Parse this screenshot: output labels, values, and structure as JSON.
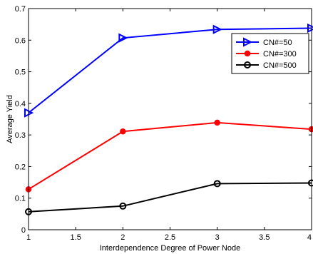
{
  "chart_data": {
    "type": "line",
    "xlabel": "Interdependence Degree of Power Node",
    "ylabel": "Average Yield",
    "xlim": [
      1,
      4
    ],
    "ylim": [
      0,
      0.7
    ],
    "xticks": [
      1,
      1.5,
      2,
      2.5,
      3,
      3.5,
      4
    ],
    "yticks": [
      0,
      0.1,
      0.2,
      0.3,
      0.4,
      0.5,
      0.6,
      0.7
    ],
    "x": [
      1,
      2,
      3,
      4
    ],
    "grid": false,
    "legend_position": "top-right",
    "series": [
      {
        "name": "CN#=50",
        "values": [
          0.37,
          0.607,
          0.634,
          0.638
        ],
        "color": "#0000ff",
        "marker": "triangle-right"
      },
      {
        "name": "CN#=300",
        "values": [
          0.128,
          0.311,
          0.339,
          0.318
        ],
        "color": "#ff0000",
        "marker": "filled-circle"
      },
      {
        "name": "CN#=500",
        "values": [
          0.057,
          0.075,
          0.146,
          0.148
        ],
        "color": "#000000",
        "marker": "open-circle"
      }
    ]
  }
}
